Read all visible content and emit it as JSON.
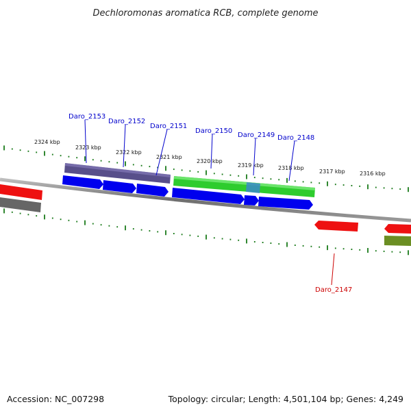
{
  "title": "Dechloromonas aromatica RCB, complete genome",
  "footer": {
    "accession": "Accession: NC_007298",
    "summary": "Topology: circular; Length: 4,501,104 bp; Genes: 4,249"
  },
  "colors": {
    "backbone": "#888888",
    "tick": "#1a7a1a",
    "gene_label_top": "#0000cc",
    "gene_label_bottom": "#cc0000",
    "blue_arrow": "#0000ee",
    "purple_bar": "#4a4080",
    "green_bar": "#2ecc2e",
    "red_bar": "#ee1111",
    "gray_bar": "#666666",
    "olive_bar": "#6b8e23"
  },
  "scale_labels": [
    "2324 kbp",
    "2323 kbp",
    "2322 kbp",
    "2321 kbp",
    "2320 kbp",
    "2319 kbp",
    "2318 kbp",
    "2317 kbp",
    "2316 kbp"
  ],
  "gene_labels": [
    "Daro_2153",
    "Daro_2152",
    "Daro_2151",
    "Daro_2150",
    "Daro_2149",
    "Daro_2148",
    "Daro_2147"
  ]
}
